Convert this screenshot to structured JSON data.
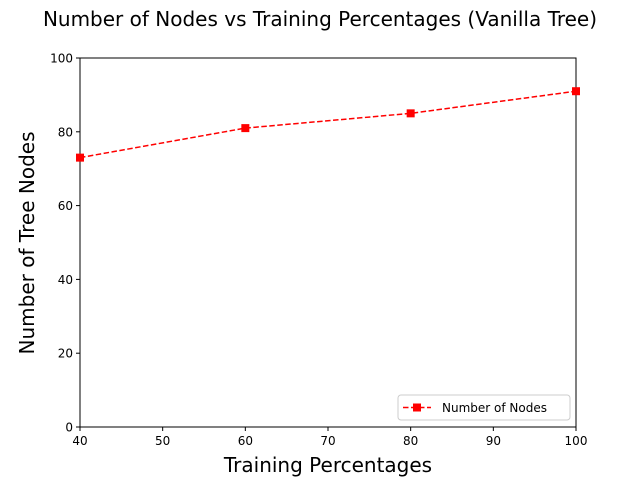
{
  "chart_data": {
    "type": "line",
    "title": "Number of Nodes vs Training Percentages (Vanilla Tree)",
    "xlabel": "Training Percentages",
    "ylabel": "Number of Tree Nodes",
    "xlim": [
      40,
      100
    ],
    "ylim": [
      0,
      100
    ],
    "xticks": [
      40,
      50,
      60,
      70,
      80,
      90,
      100
    ],
    "yticks": [
      0,
      20,
      40,
      60,
      80,
      100
    ],
    "grid": false,
    "legend_position": "lower-right",
    "series": [
      {
        "name": "Number of Nodes",
        "color": "#ff0000",
        "line_style": "dashed",
        "marker": "square",
        "x": [
          40,
          60,
          80,
          100
        ],
        "y": [
          73,
          81,
          85,
          91
        ]
      }
    ]
  }
}
